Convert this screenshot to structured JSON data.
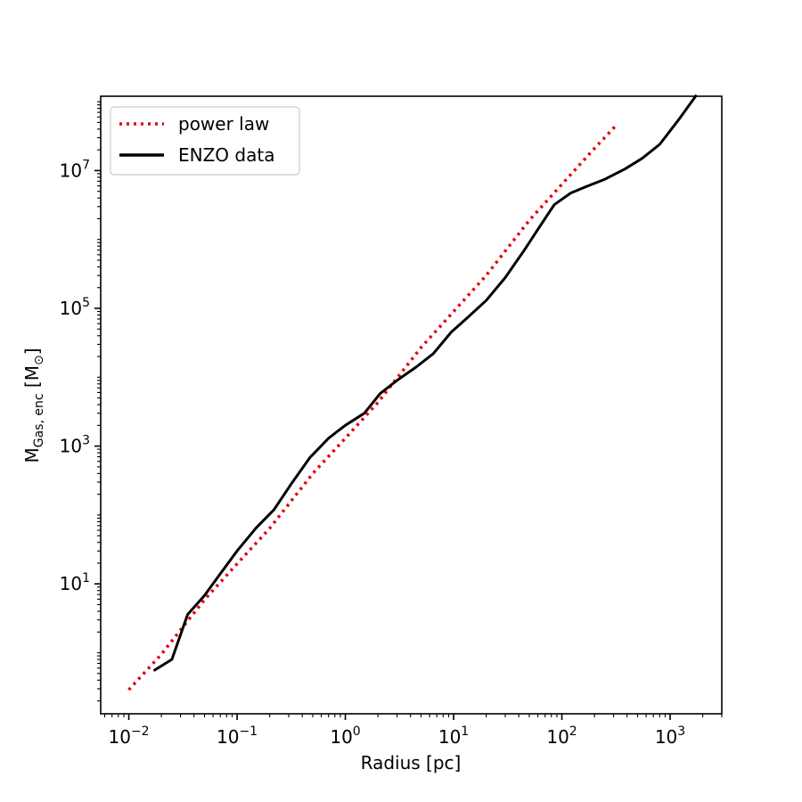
{
  "chart_data": {
    "type": "line",
    "title": "",
    "xlabel": "Radius [pc]",
    "ylabel": "M_{Gas, enc} [M_{⊙}]",
    "xscale": "log",
    "yscale": "log",
    "xlim": [
      0.0055,
      3000
    ],
    "ylim": [
      0.13,
      120000000.0
    ],
    "grid": false,
    "legend_position": "top-left",
    "x_ticks": [
      {
        "value": 0.01,
        "base": "10",
        "exp": "−2"
      },
      {
        "value": 0.1,
        "base": "10",
        "exp": "−1"
      },
      {
        "value": 1,
        "base": "10",
        "exp": "0"
      },
      {
        "value": 10,
        "base": "10",
        "exp": "1"
      },
      {
        "value": 100,
        "base": "10",
        "exp": "2"
      },
      {
        "value": 1000,
        "base": "10",
        "exp": "3"
      }
    ],
    "y_ticks": [
      {
        "value": 10,
        "base": "10",
        "exp": "1"
      },
      {
        "value": 1000,
        "base": "10",
        "exp": "3"
      },
      {
        "value": 100000,
        "base": "10",
        "exp": "5"
      },
      {
        "value": 10000000,
        "base": "10",
        "exp": "7"
      }
    ],
    "series": [
      {
        "name": "power law",
        "style": "dotted",
        "color": "#e8000b",
        "x": [
          0.01,
          0.02,
          0.05,
          0.1,
          0.2,
          0.5,
          1,
          2,
          5,
          10,
          20,
          50,
          100,
          200,
          320
        ],
        "y": [
          0.29,
          0.95,
          5.9,
          19.5,
          64,
          400,
          1300,
          4300,
          27000,
          90000,
          300000,
          1900000,
          6300000,
          21000000,
          46000000
        ]
      },
      {
        "name": "ENZO data",
        "style": "solid",
        "color": "#000000",
        "x": [
          0.017,
          0.025,
          0.035,
          0.05,
          0.07,
          0.1,
          0.15,
          0.22,
          0.32,
          0.47,
          0.7,
          1.0,
          1.5,
          2.1,
          3.0,
          4.5,
          6.5,
          9.5,
          13,
          20,
          30,
          45,
          60,
          85,
          120,
          170,
          250,
          380,
          550,
          800,
          1200,
          1750
        ],
        "y": [
          0.55,
          0.8,
          3.6,
          6.8,
          14,
          30,
          65,
          120,
          290,
          680,
          1300,
          2000,
          3000,
          5800,
          9000,
          14000,
          22000,
          45000,
          70000,
          130000,
          280000,
          700000,
          1400000,
          3200000,
          4700000,
          5900000,
          7500000,
          10500000,
          15000000,
          24000000,
          55000000,
          125000000
        ]
      }
    ]
  }
}
